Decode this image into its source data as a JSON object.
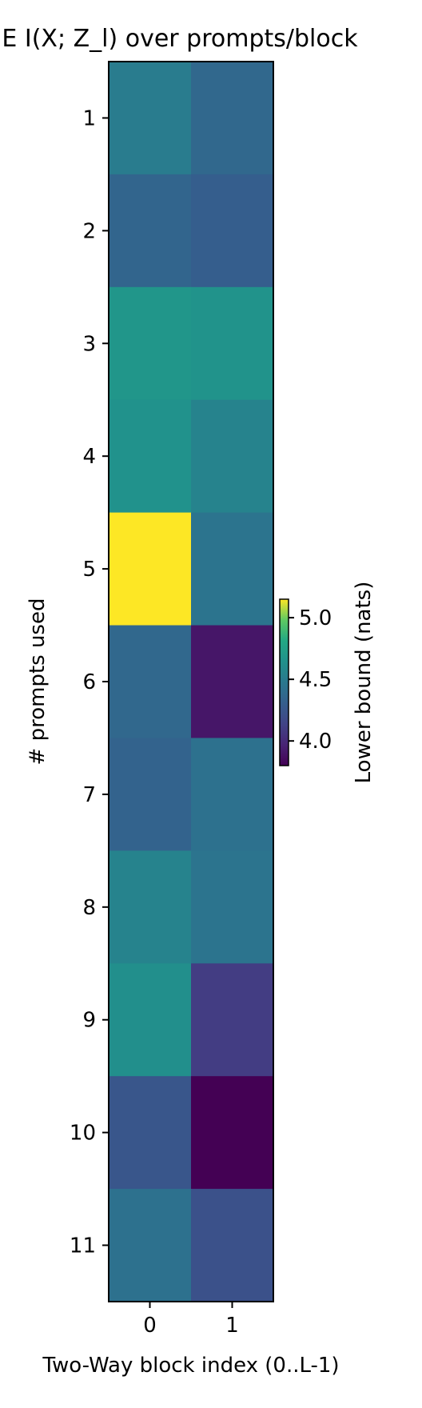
{
  "chart_data": {
    "type": "heatmap",
    "title": "E  I(X; Z_l) over prompts/block",
    "xlabel": "Two-Way block index (0..L-1)",
    "ylabel": "# prompts used",
    "x_categories": [
      "0",
      "1"
    ],
    "y_categories": [
      "1",
      "2",
      "3",
      "4",
      "5",
      "6",
      "7",
      "8",
      "9",
      "10",
      "11"
    ],
    "values": [
      [
        4.5,
        4.37
      ],
      [
        4.35,
        4.3
      ],
      [
        4.68,
        4.66
      ],
      [
        4.65,
        4.55
      ],
      [
        5.15,
        4.45
      ],
      [
        4.37,
        3.9
      ],
      [
        4.33,
        4.43
      ],
      [
        4.55,
        4.45
      ],
      [
        4.63,
        4.1
      ],
      [
        4.25,
        3.8
      ],
      [
        4.43,
        4.22
      ]
    ],
    "colorbar": {
      "label": "Lower bound (nats)",
      "range": [
        3.8,
        5.15
      ],
      "ticks": [
        "4.0",
        "4.5",
        "5.0"
      ],
      "colormap": "viridis",
      "placement": "right"
    }
  }
}
